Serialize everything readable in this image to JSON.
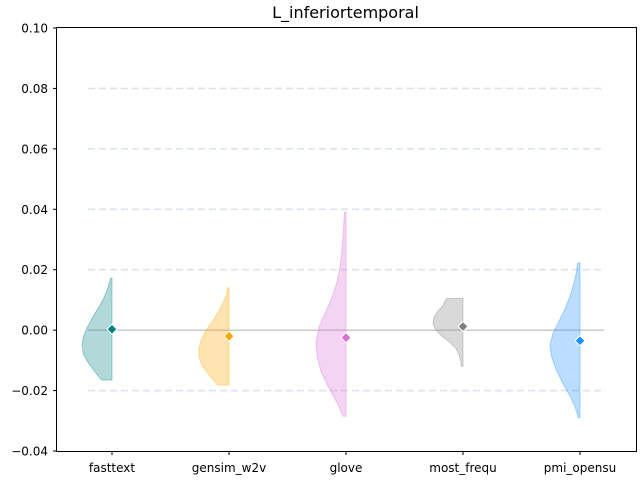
{
  "chart_data": {
    "type": "violin",
    "title": "L_inferiortemporal",
    "xlabel": "",
    "ylabel": "",
    "categories": [
      "fasttext",
      "gensim_w2v",
      "glove",
      "most_frequ",
      "pmi_opensu"
    ],
    "ylim": [
      -0.04,
      0.1
    ],
    "yticks": [
      -0.04,
      -0.02,
      0.0,
      0.02,
      0.04,
      0.06,
      0.08,
      0.1
    ],
    "ytick_labels": [
      "−0.04",
      "−0.02",
      "0.00",
      "0.02",
      "0.04",
      "0.06",
      "0.08",
      "0.10"
    ],
    "grid": "horizontal dashed",
    "reference_line": 0.0,
    "colors": {
      "fasttext": "#008080",
      "gensim_w2v": "#FFA500",
      "glove": "#DA70D6",
      "most_frequ": "#808080",
      "pmi_opensu": "#1E90FF"
    },
    "series": [
      {
        "category": "fasttext",
        "mean": 0.0003,
        "min": -0.0165,
        "max": 0.0172,
        "density": [
          [
            -0.0165,
            0.35
          ],
          [
            -0.014,
            0.55
          ],
          [
            -0.011,
            0.78
          ],
          [
            -0.008,
            0.95
          ],
          [
            -0.005,
            1.0
          ],
          [
            -0.002,
            0.95
          ],
          [
            0.001,
            0.82
          ],
          [
            0.004,
            0.66
          ],
          [
            0.007,
            0.48
          ],
          [
            0.01,
            0.3
          ],
          [
            0.013,
            0.17
          ],
          [
            0.016,
            0.08
          ],
          [
            0.0172,
            0.05
          ]
        ]
      },
      {
        "category": "gensim_w2v",
        "mean": -0.002,
        "min": -0.0182,
        "max": 0.014,
        "density": [
          [
            -0.0182,
            0.38
          ],
          [
            -0.015,
            0.65
          ],
          [
            -0.012,
            0.88
          ],
          [
            -0.009,
            1.0
          ],
          [
            -0.006,
            1.0
          ],
          [
            -0.003,
            0.92
          ],
          [
            0.0,
            0.76
          ],
          [
            0.003,
            0.55
          ],
          [
            0.006,
            0.36
          ],
          [
            0.009,
            0.2
          ],
          [
            0.012,
            0.08
          ],
          [
            0.014,
            0.05
          ]
        ]
      },
      {
        "category": "glove",
        "mean": -0.0025,
        "min": -0.0285,
        "max": 0.039,
        "density": [
          [
            -0.0285,
            0.1
          ],
          [
            -0.024,
            0.3
          ],
          [
            -0.019,
            0.58
          ],
          [
            -0.014,
            0.82
          ],
          [
            -0.009,
            0.96
          ],
          [
            -0.004,
            1.0
          ],
          [
            0.001,
            0.9
          ],
          [
            0.006,
            0.68
          ],
          [
            0.011,
            0.46
          ],
          [
            0.016,
            0.3
          ],
          [
            0.021,
            0.2
          ],
          [
            0.026,
            0.14
          ],
          [
            0.031,
            0.1
          ],
          [
            0.036,
            0.07
          ],
          [
            0.039,
            0.05
          ]
        ]
      },
      {
        "category": "most_frequ",
        "mean": 0.0012,
        "min": -0.012,
        "max": 0.0105,
        "density": [
          [
            -0.012,
            0.05
          ],
          [
            -0.01,
            0.08
          ],
          [
            -0.008,
            0.14
          ],
          [
            -0.006,
            0.24
          ],
          [
            -0.004,
            0.44
          ],
          [
            -0.002,
            0.7
          ],
          [
            0.0,
            0.9
          ],
          [
            0.002,
            1.0
          ],
          [
            0.004,
            0.98
          ],
          [
            0.006,
            0.86
          ],
          [
            0.008,
            0.68
          ],
          [
            0.0105,
            0.55
          ]
        ]
      },
      {
        "category": "pmi_opensu",
        "mean": -0.0035,
        "min": -0.029,
        "max": 0.0222,
        "density": [
          [
            -0.029,
            0.05
          ],
          [
            -0.025,
            0.18
          ],
          [
            -0.021,
            0.38
          ],
          [
            -0.017,
            0.6
          ],
          [
            -0.013,
            0.8
          ],
          [
            -0.009,
            0.94
          ],
          [
            -0.005,
            1.0
          ],
          [
            -0.001,
            0.9
          ],
          [
            0.003,
            0.7
          ],
          [
            0.007,
            0.5
          ],
          [
            0.011,
            0.34
          ],
          [
            0.015,
            0.22
          ],
          [
            0.019,
            0.12
          ],
          [
            0.0222,
            0.08
          ]
        ]
      }
    ]
  }
}
